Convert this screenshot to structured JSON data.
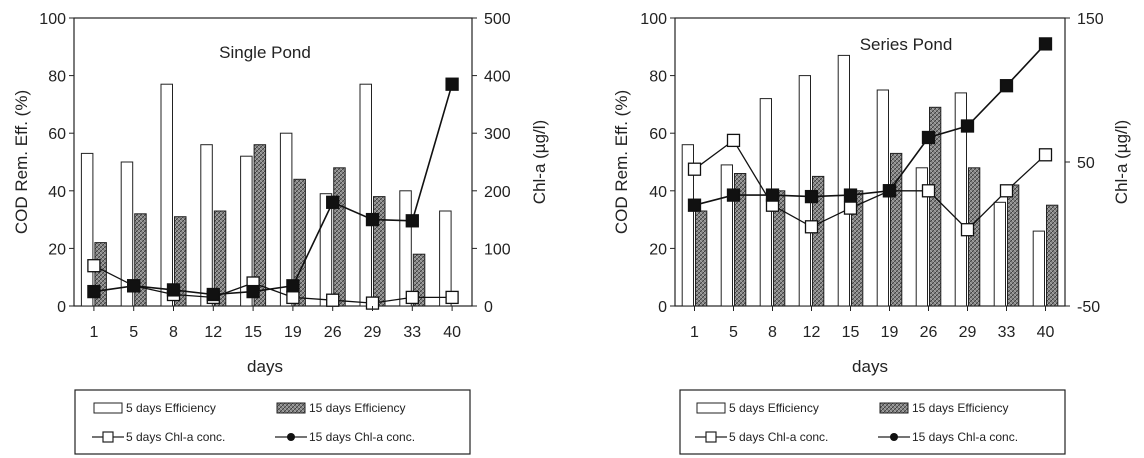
{
  "chart_data": [
    {
      "type": "bar",
      "title": "Single Pond",
      "xlabel": "days",
      "ylabel": "COD Rem. Eff. (%)",
      "y2label": "Chl-a (µg/l)",
      "categories": [
        "1",
        "5",
        "8",
        "12",
        "15",
        "19",
        "26",
        "29",
        "33",
        "40"
      ],
      "ylim": [
        0,
        100
      ],
      "yticks": [
        "0",
        "20",
        "40",
        "60",
        "80",
        "100"
      ],
      "y2lim": [
        0,
        500
      ],
      "y2ticks": [
        "0",
        "100",
        "200",
        "300",
        "400",
        "500"
      ],
      "bar_series": [
        {
          "name": "5 days Efficiency",
          "values": [
            53,
            50,
            77,
            56,
            52,
            60,
            39,
            77,
            40,
            33
          ]
        },
        {
          "name": "15 days Efficiency",
          "values": [
            22,
            32,
            31,
            33,
            56,
            44,
            48,
            38,
            18,
            0
          ]
        }
      ],
      "line_series": [
        {
          "name": "5 days Chl-a conc.",
          "axis": "right",
          "values": [
            70,
            35,
            20,
            15,
            40,
            15,
            10,
            5,
            15,
            15
          ]
        },
        {
          "name": "15 days Chl-a conc.",
          "axis": "right",
          "values": [
            25,
            35,
            28,
            20,
            25,
            35,
            180,
            150,
            148,
            385
          ]
        }
      ],
      "legend_position": "bottom",
      "grid": false
    },
    {
      "type": "bar",
      "title": "Series Pond",
      "xlabel": "days",
      "ylabel": "COD Rem. Eff. (%)",
      "y2label": "Chl-a (µg/l)",
      "categories": [
        "1",
        "5",
        "8",
        "12",
        "15",
        "19",
        "26",
        "29",
        "33",
        "40"
      ],
      "ylim": [
        0,
        100
      ],
      "yticks": [
        "0",
        "20",
        "40",
        "60",
        "80",
        "100"
      ],
      "y2lim": [
        -50,
        150
      ],
      "y2ticks": [
        "-50",
        "50",
        "150"
      ],
      "bar_series": [
        {
          "name": "5 days Efficiency",
          "values": [
            56,
            49,
            72,
            80,
            87,
            75,
            48,
            74,
            36,
            26
          ]
        },
        {
          "name": "15 days Efficiency",
          "values": [
            33,
            46,
            40,
            45,
            40,
            53,
            69,
            48,
            42,
            35
          ]
        }
      ],
      "line_series": [
        {
          "name": "5 days Chl-a conc.",
          "axis": "right",
          "values": [
            45,
            65,
            20,
            5,
            18,
            30,
            30,
            3,
            30,
            55
          ]
        },
        {
          "name": "15 days Chl-a conc.",
          "axis": "right",
          "values": [
            20,
            27,
            27,
            26,
            27,
            30,
            67,
            75,
            103,
            132
          ]
        }
      ],
      "legend_position": "bottom",
      "grid": false
    }
  ]
}
